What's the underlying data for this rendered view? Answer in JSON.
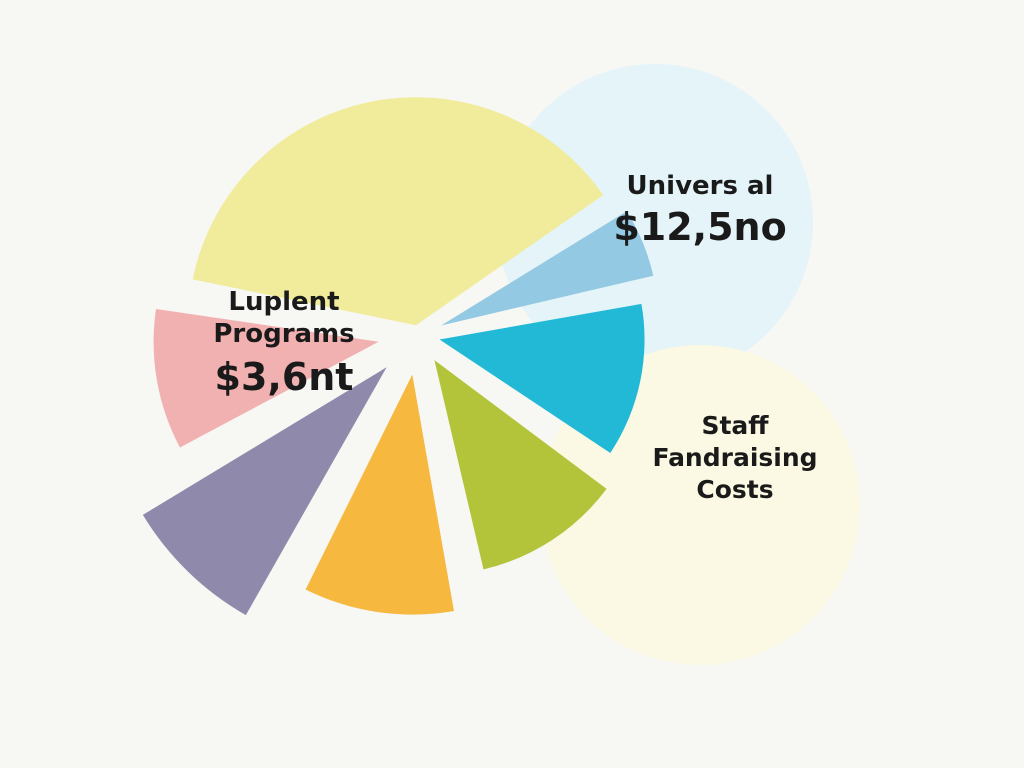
{
  "chart_data": {
    "type": "pie",
    "title": "",
    "slices": [
      {
        "color": "#f1ec9b",
        "value": 38
      },
      {
        "color": "#93c9e3",
        "value": 6
      },
      {
        "color": "#22b9d6",
        "value": 13
      },
      {
        "color": "#b3c43a",
        "value": 12
      },
      {
        "color": "#f6b83e",
        "value": 11
      },
      {
        "color": "#8f8aab",
        "value": 9
      },
      {
        "color": "#f2b1b1",
        "value": 11
      }
    ],
    "background_circles": [
      {
        "color": "#e4f4f8"
      },
      {
        "color": "#fbf9e3"
      }
    ],
    "labels": {
      "left_line1": "Luplent",
      "left_line2": "Programs",
      "left_value": "$3,6nt",
      "top_right_line1": "Univers al",
      "top_right_value": "$12,5no",
      "right_line1": "Staff",
      "right_line2": "Fandraising",
      "right_line3": "Costs"
    }
  }
}
